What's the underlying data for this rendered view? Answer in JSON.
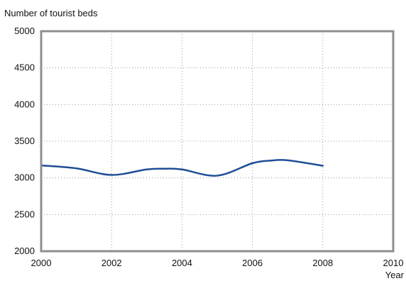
{
  "chart_data": {
    "type": "line",
    "title": "",
    "ylabel": "Number of tourist beds",
    "xlabel": "Year",
    "xlim": [
      2000,
      2010
    ],
    "ylim": [
      2000,
      5000
    ],
    "x_ticks": [
      2000,
      2002,
      2004,
      2006,
      2008,
      2010
    ],
    "y_ticks": [
      2000,
      2500,
      3000,
      3500,
      4000,
      4500,
      5000
    ],
    "grid": true,
    "series": [
      {
        "color": "#1f4e96",
        "x": [
          2000,
          2001,
          2002,
          2003,
          2003.5,
          2004,
          2005,
          2006,
          2006.5,
          2007,
          2008
        ],
        "values": [
          3170,
          3130,
          3040,
          3115,
          3125,
          3115,
          3030,
          3200,
          3235,
          3240,
          3165
        ]
      }
    ]
  }
}
